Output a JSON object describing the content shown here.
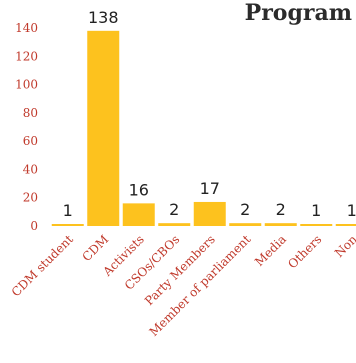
{
  "chart_data": {
    "type": "bar",
    "title": "Program",
    "categories": [
      "CDM student",
      "CDM",
      "Activists",
      "CSOs/CBOs",
      "Party Members",
      "Member of parliament",
      "Media",
      "Others",
      "Non"
    ],
    "values": [
      1,
      138,
      16,
      2,
      17,
      2,
      2,
      1,
      1
    ],
    "ylim": [
      0,
      140
    ],
    "yticks": [
      0,
      20,
      40,
      60,
      80,
      100,
      120,
      140
    ],
    "xlabel": "",
    "ylabel": "",
    "grid": false,
    "legend": "none",
    "colors": {
      "bar": "#FDC21E",
      "tick_text": "#C0392B",
      "label_text": "#222222",
      "title_text": "#2B2B2B"
    }
  }
}
